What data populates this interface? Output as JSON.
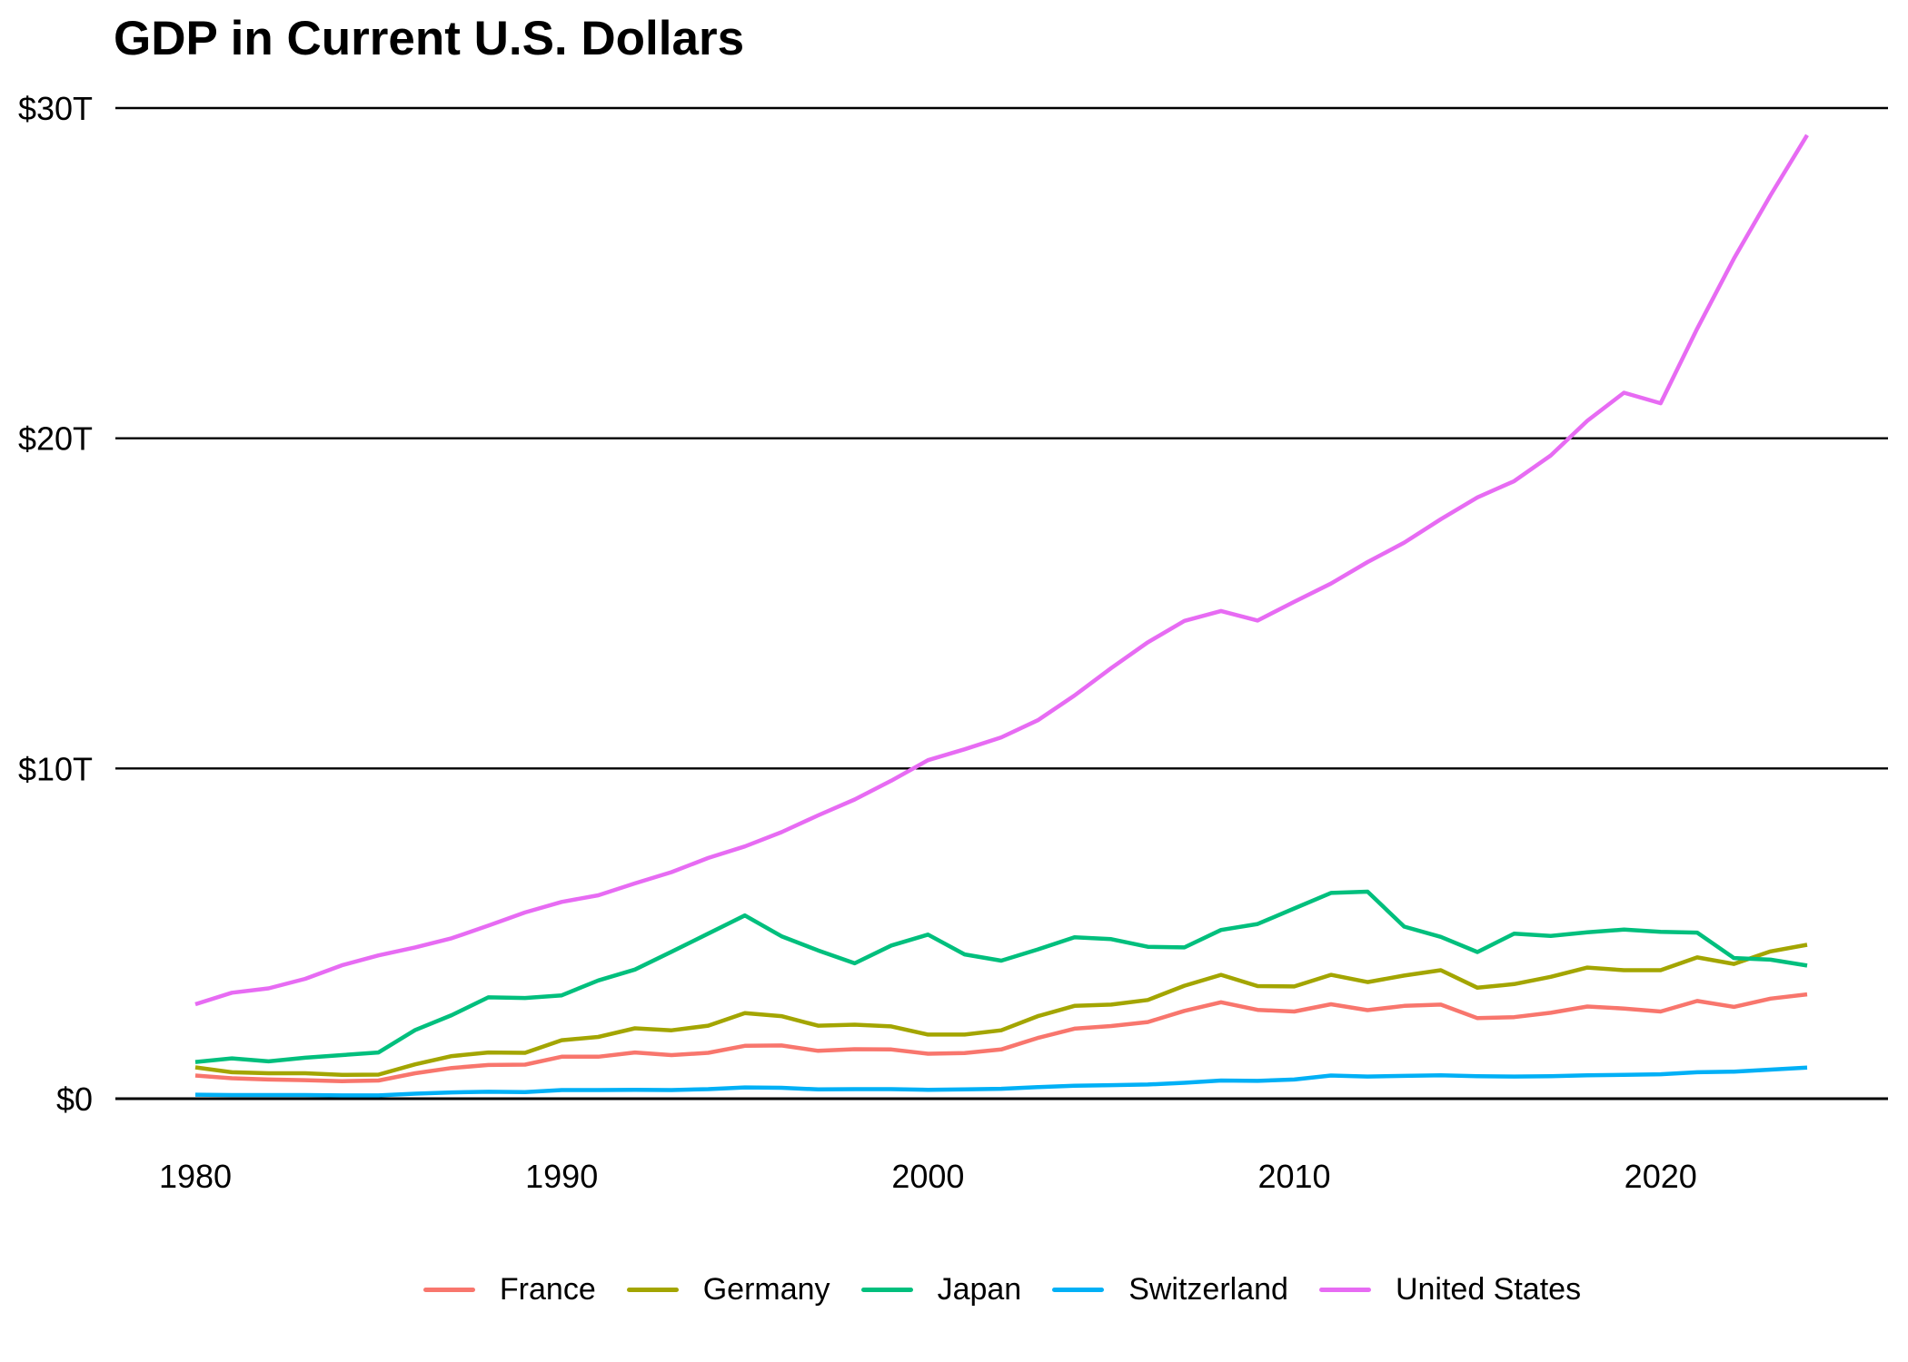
{
  "chart": {
    "title": "GDP in Current U.S. Dollars"
  },
  "chart_data": {
    "type": "line",
    "title": "GDP in Current U.S. Dollars",
    "unit": "trillions of current U.S. dollars",
    "xlabel": "",
    "ylabel": "",
    "xlim": [
      1980,
      2024
    ],
    "ylim": [
      0,
      30
    ],
    "grid": "horizontal black gridlines at $0, $10T, $20T, $30T",
    "legend_position": "bottom",
    "axis_color": "#000000",
    "background_color": "#ffffff",
    "x_ticks": [
      1980,
      1990,
      2000,
      2010,
      2020
    ],
    "y_ticks": [
      {
        "value": 0,
        "label": "$0"
      },
      {
        "value": 10,
        "label": "$10T"
      },
      {
        "value": 20,
        "label": "$20T"
      },
      {
        "value": 30,
        "label": "$30T"
      }
    ],
    "x": [
      1980,
      1981,
      1982,
      1983,
      1984,
      1985,
      1986,
      1987,
      1988,
      1989,
      1990,
      1991,
      1992,
      1993,
      1994,
      1995,
      1996,
      1997,
      1998,
      1999,
      2000,
      2001,
      2002,
      2003,
      2004,
      2005,
      2006,
      2007,
      2008,
      2009,
      2010,
      2011,
      2012,
      2013,
      2014,
      2015,
      2016,
      2017,
      2018,
      2019,
      2020,
      2021,
      2022,
      2023,
      2024
    ],
    "series": [
      {
        "id": "france",
        "name": "France",
        "color": "#F8766D",
        "values": [
          0.7,
          0.62,
          0.58,
          0.56,
          0.53,
          0.55,
          0.77,
          0.93,
          1.02,
          1.03,
          1.27,
          1.27,
          1.4,
          1.32,
          1.39,
          1.6,
          1.61,
          1.45,
          1.5,
          1.49,
          1.36,
          1.38,
          1.49,
          1.84,
          2.12,
          2.2,
          2.32,
          2.66,
          2.92,
          2.69,
          2.64,
          2.86,
          2.68,
          2.81,
          2.85,
          2.44,
          2.47,
          2.6,
          2.79,
          2.73,
          2.64,
          2.96,
          2.78,
          3.03,
          3.16
        ]
      },
      {
        "id": "germany",
        "name": "Germany",
        "color": "#A3A500",
        "values": [
          0.95,
          0.8,
          0.77,
          0.77,
          0.72,
          0.73,
          1.04,
          1.29,
          1.4,
          1.39,
          1.77,
          1.87,
          2.13,
          2.07,
          2.21,
          2.59,
          2.5,
          2.21,
          2.24,
          2.19,
          1.94,
          1.94,
          2.07,
          2.5,
          2.81,
          2.85,
          2.99,
          3.42,
          3.75,
          3.41,
          3.4,
          3.75,
          3.53,
          3.73,
          3.89,
          3.36,
          3.47,
          3.69,
          3.97,
          3.89,
          3.89,
          4.28,
          4.08,
          4.46,
          4.66
        ]
      },
      {
        "id": "japan",
        "name": "Japan",
        "color": "#00BF7D",
        "values": [
          1.11,
          1.22,
          1.13,
          1.24,
          1.32,
          1.4,
          2.08,
          2.53,
          3.07,
          3.05,
          3.13,
          3.58,
          3.91,
          4.45,
          5.0,
          5.55,
          4.92,
          4.49,
          4.1,
          4.64,
          4.97,
          4.37,
          4.18,
          4.52,
          4.89,
          4.83,
          4.6,
          4.58,
          5.11,
          5.29,
          5.76,
          6.23,
          6.27,
          5.21,
          4.9,
          4.44,
          5.0,
          4.93,
          5.04,
          5.12,
          5.05,
          5.03,
          4.26,
          4.21,
          4.03
        ]
      },
      {
        "id": "switzerland",
        "name": "Switzerland",
        "color": "#00B0F6",
        "values": [
          0.12,
          0.11,
          0.11,
          0.11,
          0.1,
          0.1,
          0.15,
          0.19,
          0.21,
          0.2,
          0.26,
          0.26,
          0.27,
          0.26,
          0.29,
          0.34,
          0.33,
          0.28,
          0.29,
          0.29,
          0.27,
          0.28,
          0.3,
          0.35,
          0.39,
          0.41,
          0.43,
          0.48,
          0.55,
          0.54,
          0.58,
          0.7,
          0.67,
          0.69,
          0.71,
          0.68,
          0.67,
          0.68,
          0.71,
          0.72,
          0.74,
          0.8,
          0.82,
          0.88,
          0.94
        ]
      },
      {
        "id": "united-states",
        "name": "United States",
        "color": "#E76BF3",
        "values": [
          2.86,
          3.21,
          3.34,
          3.63,
          4.04,
          4.34,
          4.58,
          4.86,
          5.24,
          5.64,
          5.96,
          6.16,
          6.52,
          6.86,
          7.29,
          7.64,
          8.07,
          8.58,
          9.06,
          9.63,
          10.25,
          10.58,
          10.94,
          11.46,
          12.21,
          13.04,
          13.82,
          14.47,
          14.77,
          14.48,
          15.05,
          15.6,
          16.25,
          16.84,
          17.55,
          18.21,
          18.7,
          19.48,
          20.53,
          21.38,
          21.06,
          23.32,
          25.44,
          27.36,
          29.18
        ]
      }
    ]
  }
}
